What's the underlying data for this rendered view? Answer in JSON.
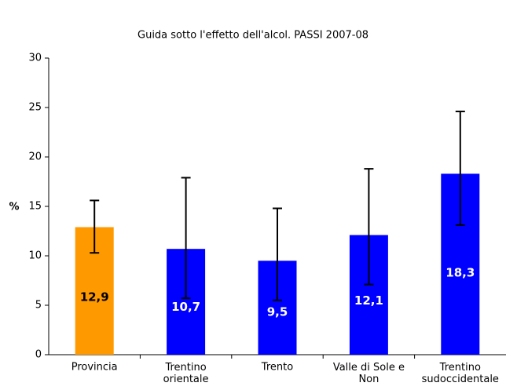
{
  "chart_data": {
    "type": "bar",
    "title": "Guida sotto l'effetto dell'alcol. PASSI 2007-08",
    "y_label": "%",
    "categories": [
      "Provincia",
      "Trentino\norientale",
      "Trento",
      "Valle di Sole e\nNon",
      "Trentino\nsudoccidentale"
    ],
    "values": [
      12.9,
      10.7,
      9.5,
      12.1,
      18.3
    ],
    "value_labels": [
      "12,9",
      "10,7",
      "9,5",
      "12,1",
      "18,3"
    ],
    "ci_low": [
      10.3,
      5.7,
      5.5,
      7.1,
      13.1
    ],
    "ci_high": [
      15.6,
      17.9,
      14.8,
      18.8,
      24.6
    ],
    "colors": [
      "#ff9900",
      "#0000ff",
      "#0000ff",
      "#0000ff",
      "#0000ff"
    ],
    "label_colors": [
      "#000000",
      "#ffffff",
      "#ffffff",
      "#ffffff",
      "#ffffff"
    ],
    "ylim": [
      0,
      30
    ],
    "yticks": [
      0,
      5,
      10,
      15,
      20,
      25,
      30
    ],
    "grid": false
  }
}
